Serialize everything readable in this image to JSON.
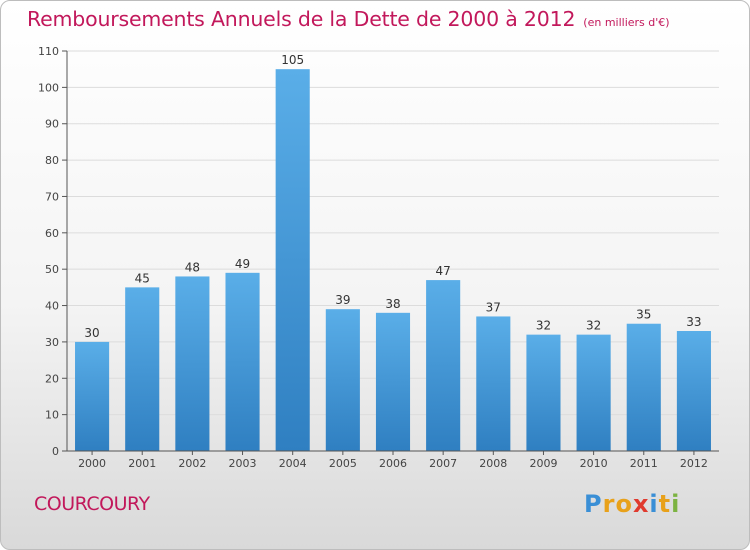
{
  "chart_data": {
    "type": "bar",
    "title": "Remboursements Annuels de la Dette de 2000 à 2012",
    "unit": "(en milliers d'€)",
    "categories": [
      "2000",
      "2001",
      "2002",
      "2003",
      "2004",
      "2005",
      "2006",
      "2007",
      "2008",
      "2009",
      "2010",
      "2011",
      "2012"
    ],
    "values": [
      30,
      45,
      48,
      49,
      105,
      39,
      38,
      47,
      37,
      32,
      32,
      35,
      33
    ],
    "ylim": [
      0,
      110
    ],
    "yticks": [
      0,
      10,
      20,
      30,
      40,
      50,
      60,
      70,
      80,
      90,
      100,
      110
    ],
    "grid": true,
    "legend": "none",
    "bar_color_top": "#5aaee8",
    "bar_color_bottom": "#2f7fc1",
    "label_color": "#333333",
    "grid_color": "#dcdcdc"
  },
  "commune": "COURCOURY",
  "logo": {
    "letters": [
      "P",
      "r",
      "o",
      "x",
      "i",
      "t",
      "i"
    ],
    "colors": [
      "#3a8fd6",
      "#e8a11a",
      "#e8a11a",
      "#e03a2e",
      "#3a8fd6",
      "#e8a11a",
      "#7cb342"
    ]
  },
  "colors": {
    "accent": "#c2185b"
  }
}
